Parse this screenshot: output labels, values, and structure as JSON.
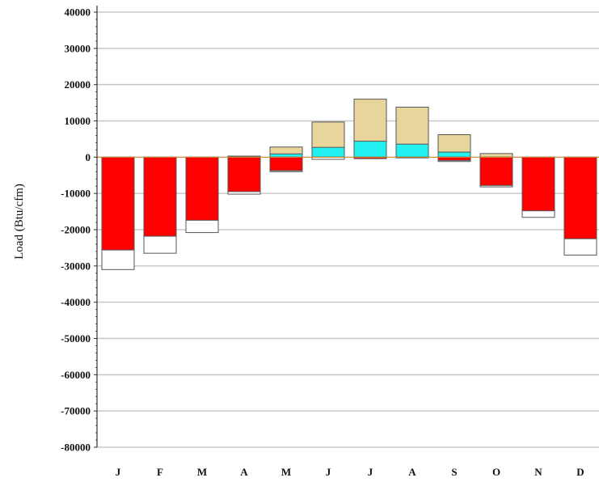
{
  "chart_data": {
    "type": "bar",
    "title": "",
    "xlabel": "",
    "ylabel": "Load (Btu/cfm)",
    "ylim": [
      -80000,
      40000
    ],
    "yticks": [
      40000,
      30000,
      20000,
      10000,
      0,
      -10000,
      -20000,
      -30000,
      -40000,
      -50000,
      -60000,
      -70000,
      -80000
    ],
    "grid": true,
    "categories": [
      "J",
      "F",
      "M",
      "A",
      "M",
      "J",
      "J",
      "A",
      "S",
      "O",
      "N",
      "D"
    ],
    "stacking": "overlapping bars drawn from zero",
    "series": [
      {
        "color": "#e8d59b",
        "values": [
          0,
          0,
          0,
          300,
          2800,
          9700,
          16000,
          13800,
          6200,
          1000,
          0,
          0
        ]
      },
      {
        "color": "#23f1f1",
        "values": [
          0,
          0,
          0,
          0,
          900,
          2700,
          4400,
          3600,
          1400,
          0,
          0,
          0
        ]
      },
      {
        "color": "#ffffff",
        "values": [
          -31000,
          -26500,
          -20800,
          -10200,
          -4000,
          -600,
          0,
          0,
          -1200,
          -8200,
          -16600,
          -27000
        ]
      },
      {
        "color": "#ff0000",
        "values": [
          -25600,
          -21800,
          -17400,
          -9500,
          -3700,
          0,
          -400,
          -200,
          -900,
          -7800,
          -14800,
          -22500
        ]
      }
    ],
    "colors": {
      "grid": "#c8c8c8",
      "axis": "#333333",
      "bar_outline": "#555555"
    }
  }
}
